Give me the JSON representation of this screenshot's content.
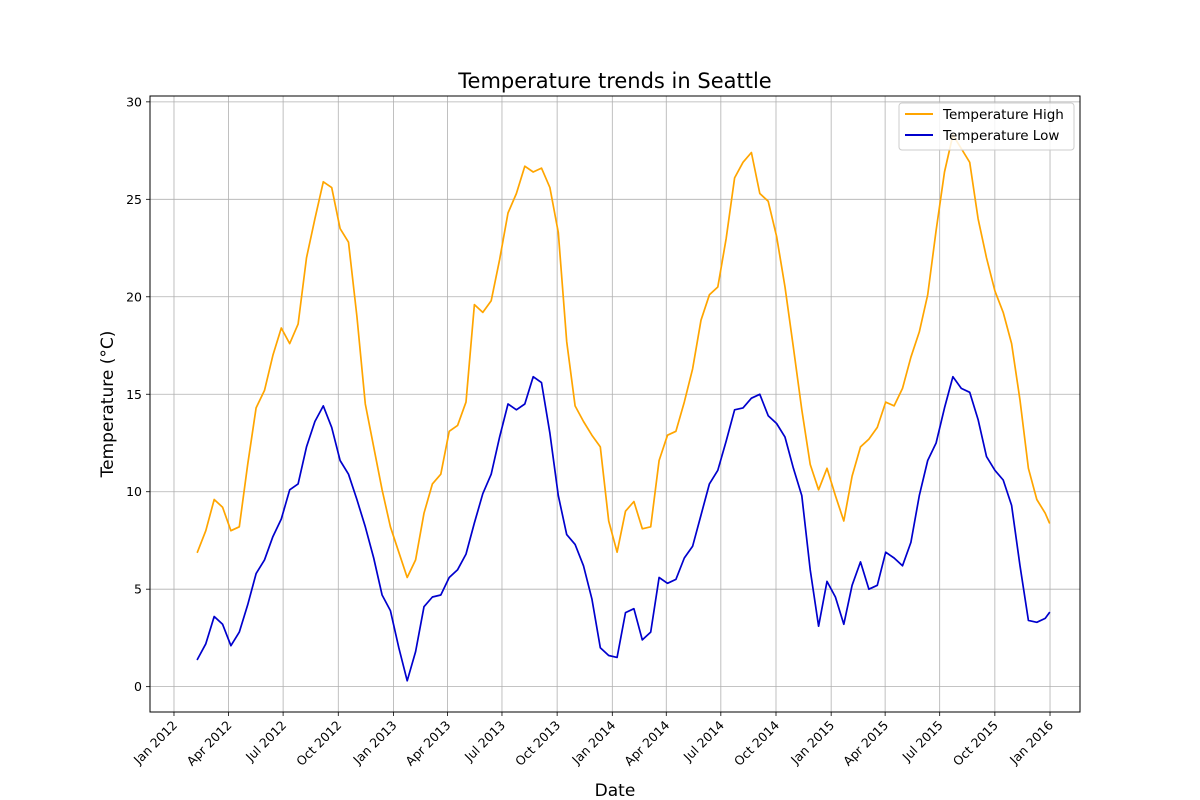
{
  "chart_data": {
    "type": "line",
    "title": "Temperature trends in Seattle",
    "xlabel": "Date",
    "ylabel": "Temperature (°C)",
    "xlim": [
      "2011-11-22",
      "2016-02-20"
    ],
    "ylim": [
      -1.3,
      30.3
    ],
    "grid": true,
    "legend_position": "top-right",
    "x_ticks": [
      "2012-01-01",
      "2012-04-01",
      "2012-07-01",
      "2012-10-01",
      "2013-01-01",
      "2013-04-01",
      "2013-07-01",
      "2013-10-01",
      "2014-01-01",
      "2014-04-01",
      "2014-07-01",
      "2014-10-01",
      "2015-01-01",
      "2015-04-01",
      "2015-07-01",
      "2015-10-01",
      "2016-01-01"
    ],
    "x_tick_labels": [
      "Jan 2012",
      "Apr 2012",
      "Jul 2012",
      "Oct 2012",
      "Jan 2013",
      "Apr 2013",
      "Jul 2013",
      "Oct 2013",
      "Jan 2014",
      "Apr 2014",
      "Jul 2014",
      "Oct 2014",
      "Jan 2015",
      "Apr 2015",
      "Jul 2015",
      "Oct 2015",
      "Jan 2016"
    ],
    "y_ticks": [
      0,
      5,
      10,
      15,
      20,
      25,
      30
    ],
    "y_tick_labels": [
      "0",
      "5",
      "10",
      "15",
      "20",
      "25",
      "30"
    ],
    "x": [
      "2012-02-09",
      "2012-02-23",
      "2012-03-08",
      "2012-03-22",
      "2012-04-05",
      "2012-04-19",
      "2012-05-03",
      "2012-05-17",
      "2012-05-31",
      "2012-06-14",
      "2012-06-28",
      "2012-07-12",
      "2012-07-26",
      "2012-08-09",
      "2012-08-23",
      "2012-09-06",
      "2012-09-20",
      "2012-10-04",
      "2012-10-18",
      "2012-11-01",
      "2012-11-15",
      "2012-11-29",
      "2012-12-13",
      "2012-12-27",
      "2013-01-10",
      "2013-01-24",
      "2013-02-07",
      "2013-02-21",
      "2013-03-07",
      "2013-03-21",
      "2013-04-04",
      "2013-04-18",
      "2013-05-02",
      "2013-05-16",
      "2013-05-30",
      "2013-06-13",
      "2013-06-27",
      "2013-07-11",
      "2013-07-25",
      "2013-08-08",
      "2013-08-22",
      "2013-09-05",
      "2013-09-19",
      "2013-10-03",
      "2013-10-17",
      "2013-10-31",
      "2013-11-14",
      "2013-11-28",
      "2013-12-12",
      "2013-12-26",
      "2014-01-09",
      "2014-01-23",
      "2014-02-06",
      "2014-02-20",
      "2014-03-06",
      "2014-03-20",
      "2014-04-03",
      "2014-04-17",
      "2014-05-01",
      "2014-05-15",
      "2014-05-29",
      "2014-06-12",
      "2014-06-26",
      "2014-07-10",
      "2014-07-24",
      "2014-08-07",
      "2014-08-21",
      "2014-09-04",
      "2014-09-18",
      "2014-10-02",
      "2014-10-16",
      "2014-10-30",
      "2014-11-13",
      "2014-11-27",
      "2014-12-11",
      "2014-12-25",
      "2015-01-08",
      "2015-01-22",
      "2015-02-05",
      "2015-02-19",
      "2015-03-05",
      "2015-03-19",
      "2015-04-02",
      "2015-04-16",
      "2015-04-30",
      "2015-05-14",
      "2015-05-28",
      "2015-06-11",
      "2015-06-25",
      "2015-07-09",
      "2015-07-23",
      "2015-08-06",
      "2015-08-20",
      "2015-09-03",
      "2015-09-17",
      "2015-10-01",
      "2015-10-15",
      "2015-10-29",
      "2015-11-12",
      "2015-11-26",
      "2015-12-10",
      "2015-12-24",
      "2015-12-31"
    ],
    "series": [
      {
        "name": "Temperature High",
        "color": "#ffa500",
        "values": [
          6.9,
          8.0,
          9.6,
          9.2,
          8.0,
          8.2,
          11.4,
          14.3,
          15.2,
          17.0,
          18.4,
          17.6,
          18.6,
          22.0,
          24.0,
          25.9,
          25.6,
          23.5,
          22.8,
          19.0,
          14.5,
          12.3,
          10.1,
          8.2,
          6.9,
          5.6,
          6.5,
          8.9,
          10.4,
          10.9,
          13.1,
          13.4,
          14.6,
          19.6,
          19.2,
          19.8,
          21.9,
          24.3,
          25.3,
          26.7,
          26.4,
          26.6,
          25.6,
          23.3,
          17.7,
          14.4,
          13.6,
          12.9,
          12.3,
          8.5,
          6.9,
          9.0,
          9.5,
          8.1,
          8.2,
          11.6,
          12.9,
          13.1,
          14.6,
          16.3,
          18.8,
          20.1,
          20.5,
          23.0,
          26.1,
          26.9,
          27.4,
          25.3,
          24.9,
          23.1,
          20.5,
          17.4,
          14.2,
          11.4,
          10.1,
          11.2,
          9.8,
          8.5,
          10.8,
          12.3,
          12.7,
          13.3,
          14.6,
          14.4,
          15.3,
          16.9,
          18.2,
          20.1,
          23.4,
          26.4,
          28.3,
          27.6,
          26.9,
          24.0,
          22.0,
          20.3,
          19.2,
          17.6,
          14.7,
          11.2,
          9.6,
          8.9,
          8.4
        ]
      },
      {
        "name": "Temperature Low",
        "color": "#0000cd",
        "values": [
          1.4,
          2.2,
          3.6,
          3.2,
          2.1,
          2.8,
          4.2,
          5.8,
          6.5,
          7.7,
          8.6,
          10.1,
          10.4,
          12.3,
          13.6,
          14.4,
          13.3,
          11.6,
          10.9,
          9.6,
          8.2,
          6.6,
          4.7,
          3.9,
          2.0,
          0.3,
          1.8,
          4.1,
          4.6,
          4.7,
          5.6,
          6.0,
          6.8,
          8.4,
          9.9,
          10.9,
          12.8,
          14.5,
          14.2,
          14.5,
          15.9,
          15.6,
          13.0,
          9.8,
          7.8,
          7.3,
          6.2,
          4.5,
          2.0,
          1.6,
          1.5,
          3.8,
          4.0,
          2.4,
          2.8,
          5.6,
          5.3,
          5.5,
          6.6,
          7.2,
          8.8,
          10.4,
          11.1,
          12.6,
          14.2,
          14.3,
          14.8,
          15.0,
          13.9,
          13.5,
          12.8,
          11.2,
          9.8,
          6.0,
          3.1,
          5.4,
          4.6,
          3.2,
          5.2,
          6.4,
          5.0,
          5.2,
          6.9,
          6.6,
          6.2,
          7.4,
          9.8,
          11.6,
          12.5,
          14.3,
          15.9,
          15.3,
          15.1,
          13.7,
          11.8,
          11.1,
          10.6,
          9.3,
          6.2,
          3.4,
          3.3,
          3.5,
          3.8
        ]
      }
    ]
  }
}
